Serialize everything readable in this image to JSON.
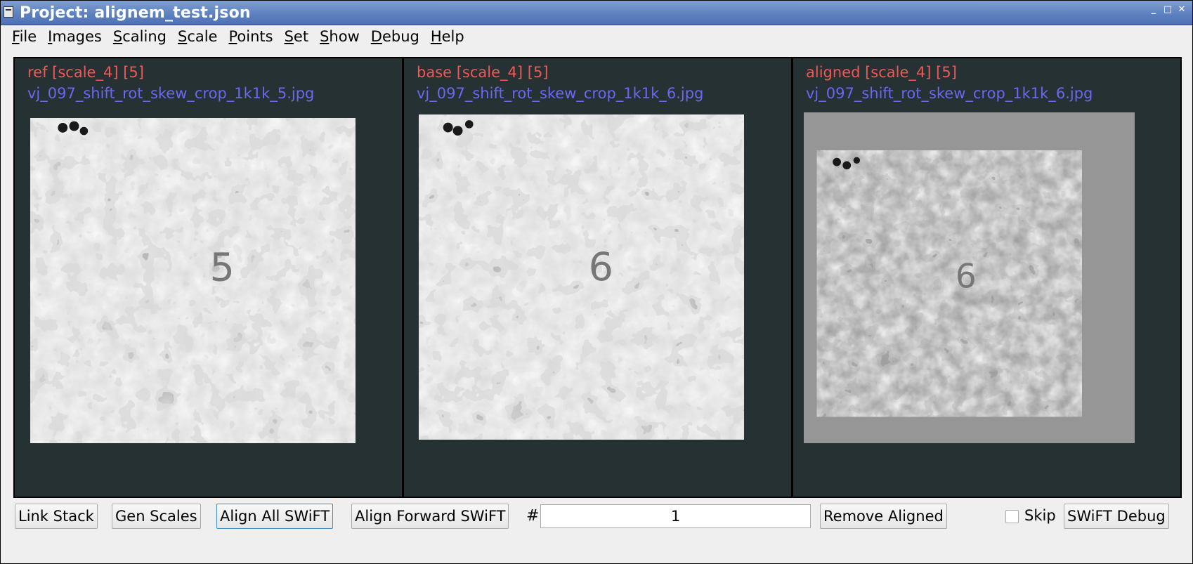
{
  "window": {
    "title": "Project: alignem_test.json"
  },
  "menubar": {
    "items": [
      {
        "first": "F",
        "rest": "ile"
      },
      {
        "first": "I",
        "rest": "mages"
      },
      {
        "first": "S",
        "rest": "caling"
      },
      {
        "first": "S",
        "rest": "cale"
      },
      {
        "first": "P",
        "rest": "oints"
      },
      {
        "first": "S",
        "rest": "et"
      },
      {
        "first": "S",
        "rest": "how"
      },
      {
        "first": "D",
        "rest": "ebug"
      },
      {
        "first": "H",
        "rest": "elp"
      }
    ]
  },
  "panels": [
    {
      "role": "ref [scale_4] [5]",
      "file": "vj_097_shift_rot_skew_crop_1k1k_5.jpg",
      "digit": "5"
    },
    {
      "role": "base [scale_4] [5]",
      "file": "vj_097_shift_rot_skew_crop_1k1k_6.jpg",
      "digit": "6"
    },
    {
      "role": "aligned [scale_4] [5]",
      "file": "vj_097_shift_rot_skew_crop_1k1k_6.jpg",
      "digit": "6"
    }
  ],
  "controls": {
    "link_stack": "Link Stack",
    "gen_scales": "Gen Scales",
    "align_all": "Align All SWiFT",
    "align_forward": "Align Forward SWiFT",
    "hash": "#",
    "forward_count": "1",
    "remove_aligned": "Remove Aligned",
    "skip_label": "Skip",
    "skip_checked": false,
    "swift_debug": "SWiFT Debug"
  },
  "colors": {
    "panel_bg": "#263133",
    "role_text": "#f25757",
    "file_text": "#6c67f0",
    "aligned_bg": "#969696"
  }
}
